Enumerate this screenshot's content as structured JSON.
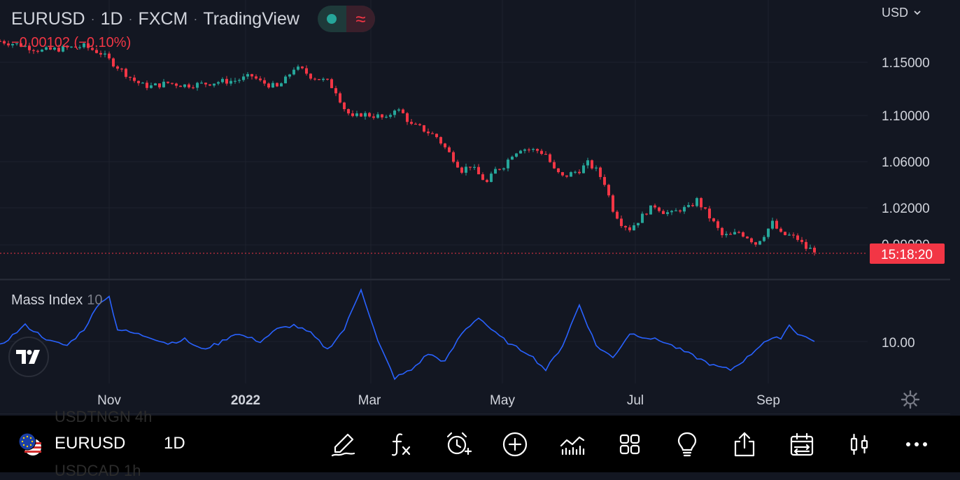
{
  "header": {
    "symbol": "EURUSD",
    "interval": "1D",
    "exchange": "FXCM",
    "provider": "TradingView",
    "change": "−0.00102 (−0.10%)",
    "currency": "USD",
    "badge_icons": [
      "status-dot-icon",
      "approx-wave-icon"
    ]
  },
  "colors": {
    "background": "#131722",
    "up": "#26a69a",
    "down": "#f23645",
    "indicator_line": "#2962ff",
    "grid": "#1e222d"
  },
  "price_axis": {
    "labels": [
      "1.15000",
      "1.10000",
      "1.06000",
      "1.02000",
      "0.99000"
    ],
    "countdown": "15:18:20"
  },
  "time_axis": {
    "labels": [
      "Nov",
      "2022",
      "Mar",
      "May",
      "Jul",
      "Sep"
    ]
  },
  "indicator": {
    "name": "Mass Index",
    "param": "10",
    "axis_label": "10.00"
  },
  "bottom_bar": {
    "symbol": "EURUSD",
    "interval": "1D",
    "ghost_above": "USDTNGN   4h",
    "ghost_below": "USDCAD   1h",
    "tools": [
      "brush-icon",
      "formula-icon",
      "alarm-icon",
      "add-circle-icon",
      "compare-icon",
      "grid-icon",
      "lightbulb-icon",
      "share-icon",
      "date-range-icon",
      "candle-icon",
      "more-icon"
    ]
  },
  "chart_data": [
    {
      "type": "candlestick",
      "series": [
        {
          "name": "EURUSD",
          "points": [
            [
              0,
              1.1685
            ],
            [
              5,
              1.165
            ],
            [
              10,
              1.16
            ],
            [
              15,
              1.162
            ],
            [
              20,
              1.164
            ],
            [
              24,
              1.158
            ],
            [
              28,
              1.146
            ],
            [
              32,
              1.134
            ],
            [
              34,
              1.13
            ],
            [
              36,
              1.129
            ],
            [
              40,
              1.132
            ],
            [
              44,
              1.13
            ],
            [
              48,
              1.131
            ],
            [
              52,
              1.133
            ],
            [
              56,
              1.134
            ],
            [
              60,
              1.138
            ],
            [
              62,
              1.133
            ],
            [
              66,
              1.128
            ],
            [
              68,
              1.135
            ],
            [
              70,
              1.145
            ],
            [
              72,
              1.143
            ],
            [
              74,
              1.138
            ],
            [
              78,
              1.133
            ],
            [
              80,
              1.125
            ],
            [
              82,
              1.11
            ],
            [
              84,
              1.101
            ],
            [
              86,
              1.105
            ],
            [
              90,
              1.103
            ],
            [
              92,
              1.1
            ],
            [
              94,
              1.11
            ],
            [
              96,
              1.105
            ],
            [
              98,
              1.095
            ],
            [
              100,
              1.093
            ],
            [
              104,
              1.085
            ],
            [
              108,
              1.066
            ],
            [
              110,
              1.056
            ],
            [
              112,
              1.06
            ],
            [
              114,
              1.052
            ],
            [
              116,
              1.045
            ],
            [
              118,
              1.056
            ],
            [
              120,
              1.06
            ],
            [
              122,
              1.07
            ],
            [
              124,
              1.075
            ],
            [
              128,
              1.073
            ],
            [
              130,
              1.07
            ],
            [
              132,
              1.056
            ],
            [
              134,
              1.05
            ],
            [
              138,
              1.056
            ],
            [
              140,
              1.062
            ],
            [
              142,
              1.056
            ],
            [
              144,
              1.045
            ],
            [
              146,
              1.022
            ],
            [
              148,
              1.01
            ],
            [
              150,
              1.005
            ],
            [
              152,
              1.012
            ],
            [
              154,
              1.02
            ],
            [
              156,
              1.025
            ],
            [
              158,
              1.02
            ],
            [
              160,
              1.018
            ],
            [
              162,
              1.022
            ],
            [
              164,
              1.023
            ],
            [
              166,
              1.03
            ],
            [
              168,
              1.02
            ],
            [
              170,
              1.01
            ],
            [
              172,
              0.999
            ],
            [
              174,
              0.999
            ],
            [
              176,
              1.002
            ],
            [
              178,
              0.998
            ],
            [
              180,
              0.992
            ],
            [
              182,
              1.0
            ],
            [
              184,
              1.01
            ],
            [
              186,
              1.0
            ],
            [
              188,
              0.999
            ],
            [
              190,
              0.996
            ],
            [
              192,
              0.988
            ],
            [
              194,
              0.9865
            ]
          ]
        }
      ],
      "ylim": [
        0.97,
        1.18
      ]
    },
    {
      "type": "line",
      "series": [
        {
          "name": "Mass Index",
          "points": [
            [
              0,
              9.9
            ],
            [
              6,
              10.4
            ],
            [
              12,
              10.0
            ],
            [
              16,
              9.9
            ],
            [
              20,
              10.3
            ],
            [
              24,
              11.0
            ],
            [
              26,
              11.1
            ],
            [
              28,
              10.3
            ],
            [
              32,
              10.2
            ],
            [
              36,
              10.1
            ],
            [
              40,
              9.95
            ],
            [
              44,
              10.05
            ],
            [
              48,
              9.8
            ],
            [
              52,
              9.95
            ],
            [
              56,
              10.2
            ],
            [
              62,
              10.0
            ],
            [
              66,
              10.3
            ],
            [
              70,
              10.4
            ],
            [
              74,
              10.2
            ],
            [
              78,
              9.8
            ],
            [
              82,
              10.3
            ],
            [
              86,
              11.3
            ],
            [
              90,
              10.0
            ],
            [
              94,
              9.1
            ],
            [
              98,
              9.3
            ],
            [
              102,
              9.7
            ],
            [
              106,
              9.5
            ],
            [
              110,
              10.2
            ],
            [
              114,
              10.6
            ],
            [
              118,
              10.2
            ],
            [
              122,
              9.9
            ],
            [
              126,
              9.7
            ],
            [
              130,
              9.3
            ],
            [
              134,
              9.9
            ],
            [
              138,
              10.9
            ],
            [
              142,
              9.9
            ],
            [
              146,
              9.6
            ],
            [
              150,
              10.2
            ],
            [
              154,
              10.1
            ],
            [
              158,
              10.0
            ],
            [
              162,
              9.8
            ],
            [
              166,
              9.6
            ],
            [
              170,
              9.4
            ],
            [
              174,
              9.3
            ],
            [
              178,
              9.6
            ],
            [
              182,
              10.0
            ],
            [
              186,
              10.1
            ],
            [
              188,
              10.4
            ],
            [
              190,
              10.2
            ],
            [
              194,
              10.0
            ]
          ]
        }
      ]
    }
  ]
}
